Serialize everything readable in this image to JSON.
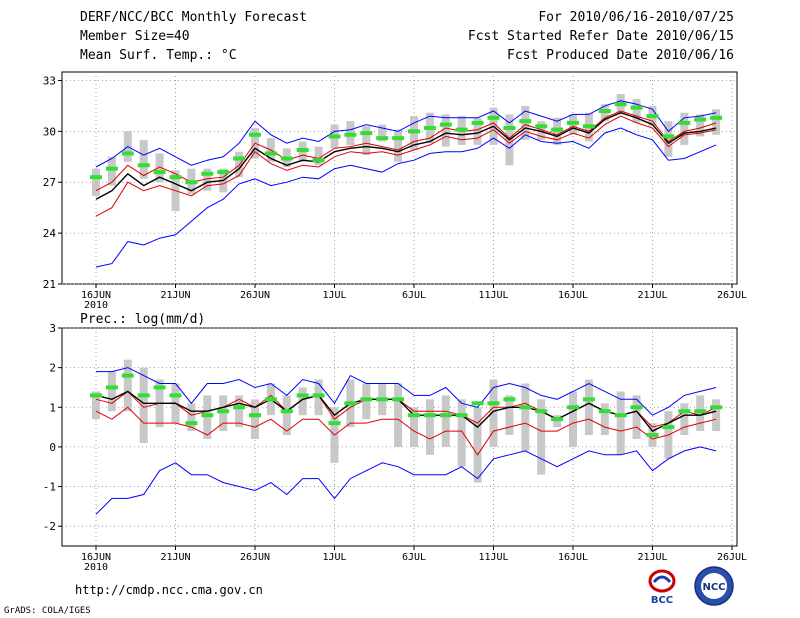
{
  "header": {
    "title": "DERF/NCC/BCC Monthly Forecast",
    "member_size": "Member Size=40",
    "variable": "Mean Surf. Temp.: °C",
    "forecast_period": "For 2010/06/16-2010/07/25",
    "fcst_started": "Fcst Started Refer Date 2010/06/15",
    "fcst_produced": "Fcst Produced Date 2010/06/16"
  },
  "footer": {
    "url": "http://cmdp.ncc.cma.gov.cn",
    "credit": "GrADS: COLA/IGES",
    "logo_bcc": "BCC",
    "logo_ncc": "NCC"
  },
  "colors": {
    "max_line": "#0000ff",
    "min_line": "#0000ff",
    "upper_line": "#dd0000",
    "lower_line": "#dd0000",
    "mean_line": "#000000",
    "obs_marker": "#33dd33",
    "spread_bar": "#c8c8c8",
    "grid": "#888888"
  },
  "chart_data": [
    {
      "type": "line",
      "title": "Mean Surf. Temp.: °C",
      "x_tick_labels": [
        "16JUN",
        "21JUN",
        "26JUN",
        "1JUL",
        "6JUL",
        "11JUL",
        "16JUL",
        "21JUL",
        "26JUL"
      ],
      "x_tick_days": [
        0,
        5,
        10,
        15,
        20,
        25,
        30,
        35,
        40
      ],
      "x_year_label": "2010",
      "y_tick_labels": [
        "21",
        "24",
        "27",
        "30",
        "33"
      ],
      "ylim": [
        21,
        33.5
      ],
      "x_days": [
        0,
        1,
        2,
        3,
        4,
        5,
        6,
        7,
        8,
        9,
        10,
        11,
        12,
        13,
        14,
        15,
        16,
        17,
        18,
        19,
        20,
        21,
        22,
        23,
        24,
        25,
        26,
        27,
        28,
        29,
        30,
        31,
        32,
        33,
        34,
        35,
        36,
        37,
        38,
        39
      ],
      "series": [
        {
          "name": "max",
          "values": [
            27.9,
            28.4,
            29.1,
            28.6,
            29.0,
            28.5,
            28.0,
            28.3,
            28.5,
            29.3,
            30.6,
            29.8,
            29.3,
            29.6,
            29.4,
            30.0,
            30.1,
            30.4,
            30.2,
            30.0,
            30.5,
            30.9,
            30.8,
            30.8,
            30.8,
            31.2,
            30.5,
            31.2,
            30.9,
            30.6,
            31.0,
            31.0,
            31.5,
            31.8,
            31.6,
            31.3,
            30.0,
            30.8,
            30.9,
            31.1
          ]
        },
        {
          "name": "upper",
          "values": [
            26.5,
            27.0,
            28.0,
            27.4,
            27.9,
            27.5,
            27.0,
            27.2,
            27.3,
            28.0,
            29.3,
            28.9,
            28.3,
            28.6,
            28.4,
            29.0,
            29.1,
            29.3,
            29.1,
            28.9,
            29.4,
            29.6,
            30.2,
            30.0,
            30.1,
            30.5,
            29.6,
            30.4,
            30.1,
            29.8,
            30.3,
            30.0,
            30.8,
            31.2,
            30.9,
            30.6,
            29.4,
            30.0,
            30.2,
            30.5
          ]
        },
        {
          "name": "mean",
          "values": [
            26.0,
            26.5,
            27.5,
            26.8,
            27.3,
            26.9,
            26.5,
            27.0,
            27.1,
            27.8,
            29.0,
            28.4,
            28.0,
            28.3,
            28.2,
            28.8,
            29.0,
            29.1,
            29.0,
            28.8,
            29.2,
            29.4,
            29.9,
            29.8,
            29.9,
            30.3,
            29.5,
            30.2,
            30.0,
            29.7,
            30.2,
            29.9,
            30.7,
            31.1,
            30.8,
            30.4,
            29.3,
            29.9,
            30.0,
            30.2
          ]
        },
        {
          "name": "lower",
          "values": [
            25.0,
            25.5,
            27.0,
            26.5,
            26.8,
            26.5,
            26.2,
            26.8,
            26.9,
            27.4,
            28.8,
            28.1,
            27.7,
            28.0,
            27.9,
            28.5,
            28.8,
            28.7,
            28.8,
            28.6,
            28.9,
            29.2,
            29.7,
            29.5,
            29.6,
            30.1,
            29.3,
            30.0,
            29.7,
            29.5,
            29.9,
            29.6,
            30.4,
            30.9,
            30.5,
            30.2,
            29.1,
            29.8,
            29.9,
            30.1
          ]
        },
        {
          "name": "min",
          "values": [
            22.0,
            22.2,
            23.5,
            23.3,
            23.7,
            23.9,
            24.7,
            25.5,
            26.0,
            26.9,
            27.2,
            26.8,
            27.0,
            27.3,
            27.2,
            27.8,
            28.0,
            27.8,
            27.6,
            28.1,
            28.3,
            28.7,
            28.8,
            28.8,
            29.0,
            29.6,
            29.0,
            29.8,
            29.4,
            29.3,
            29.4,
            29.0,
            29.9,
            30.2,
            29.8,
            29.5,
            28.3,
            28.4,
            28.8,
            29.2
          ]
        },
        {
          "name": "observed",
          "values": [
            27.3,
            27.8,
            28.7,
            28.0,
            27.6,
            27.3,
            27.0,
            27.5,
            27.6,
            28.4,
            29.8,
            28.7,
            28.4,
            28.9,
            28.3,
            29.7,
            29.8,
            29.9,
            29.6,
            29.6,
            30.0,
            30.2,
            30.4,
            30.1,
            30.5,
            30.8,
            30.2,
            30.6,
            30.3,
            30.1,
            30.5,
            30.3,
            31.2,
            31.6,
            31.4,
            30.9,
            29.7,
            30.5,
            30.7,
            30.8
          ]
        }
      ],
      "spread_bars": {
        "low": [
          26.2,
          26.8,
          28.2,
          27.2,
          27.0,
          25.3,
          26.3,
          26.5,
          26.4,
          27.3,
          28.4,
          28.2,
          27.9,
          28.2,
          28.0,
          29.0,
          29.2,
          28.6,
          29.4,
          28.2,
          28.9,
          29.3,
          29.1,
          29.2,
          29.2,
          29.2,
          28.0,
          29.5,
          29.5,
          29.2,
          29.8,
          29.4,
          30.6,
          31.0,
          30.5,
          30.3,
          28.5,
          29.2,
          29.7,
          29.8
        ],
        "high": [
          27.8,
          28.5,
          30.0,
          29.5,
          28.7,
          27.7,
          27.8,
          27.8,
          27.8,
          28.8,
          30.2,
          29.6,
          29.0,
          29.4,
          29.1,
          30.4,
          30.6,
          30.3,
          30.4,
          30.1,
          30.9,
          31.1,
          31.0,
          30.9,
          30.8,
          31.4,
          31.0,
          31.5,
          30.6,
          30.8,
          31.0,
          31.1,
          31.6,
          32.2,
          31.9,
          31.5,
          30.6,
          31.1,
          31.0,
          31.3
        ]
      }
    },
    {
      "type": "line",
      "title": "Prec.: log(mm/d)",
      "x_tick_labels": [
        "16JUN",
        "21JUN",
        "26JUN",
        "1JUL",
        "6JUL",
        "11JUL",
        "16JUL",
        "21JUL",
        "26JUL"
      ],
      "x_tick_days": [
        0,
        5,
        10,
        15,
        20,
        25,
        30,
        35,
        40
      ],
      "x_year_label": "2010",
      "y_tick_labels": [
        "-2",
        "-1",
        "0",
        "1",
        "2",
        "3"
      ],
      "ylim": [
        -2.5,
        3
      ],
      "x_days": [
        0,
        1,
        2,
        3,
        4,
        5,
        6,
        7,
        8,
        9,
        10,
        11,
        12,
        13,
        14,
        15,
        16,
        17,
        18,
        19,
        20,
        21,
        22,
        23,
        24,
        25,
        26,
        27,
        28,
        29,
        30,
        31,
        32,
        33,
        34,
        35,
        36,
        37,
        38,
        39
      ],
      "series": [
        {
          "name": "max",
          "values": [
            1.9,
            1.9,
            2.0,
            1.8,
            1.6,
            1.6,
            1.1,
            1.6,
            1.6,
            1.7,
            1.5,
            1.6,
            1.3,
            1.7,
            1.6,
            1.1,
            1.8,
            1.6,
            1.6,
            1.6,
            1.3,
            1.3,
            1.5,
            1.1,
            1.0,
            1.5,
            1.6,
            1.5,
            1.3,
            1.2,
            1.4,
            1.6,
            1.4,
            1.2,
            1.2,
            0.8,
            1.0,
            1.3,
            1.4,
            1.5
          ]
        },
        {
          "name": "upper",
          "values": [
            1.2,
            1.1,
            1.4,
            1.0,
            1.1,
            1.1,
            0.8,
            0.9,
            1.0,
            1.2,
            1.0,
            1.3,
            0.9,
            1.2,
            1.3,
            0.7,
            1.0,
            1.2,
            1.2,
            1.2,
            0.9,
            0.9,
            0.9,
            0.8,
            0.6,
            1.0,
            1.0,
            1.1,
            0.9,
            0.7,
            0.9,
            1.1,
            0.9,
            0.8,
            0.9,
            0.5,
            0.6,
            0.9,
            0.8,
            1.0
          ]
        },
        {
          "name": "mean",
          "values": [
            1.3,
            1.2,
            1.4,
            1.1,
            1.1,
            1.1,
            0.9,
            0.9,
            1.0,
            1.1,
            1.0,
            1.2,
            0.9,
            1.2,
            1.3,
            0.8,
            1.1,
            1.2,
            1.2,
            1.2,
            0.8,
            0.8,
            0.8,
            0.8,
            0.5,
            0.9,
            1.0,
            1.0,
            0.9,
            0.7,
            0.9,
            1.1,
            0.9,
            0.8,
            0.9,
            0.4,
            0.6,
            0.8,
            0.8,
            0.9
          ]
        },
        {
          "name": "lower",
          "values": [
            0.9,
            0.7,
            1.0,
            0.6,
            0.6,
            0.6,
            0.5,
            0.3,
            0.6,
            0.6,
            0.5,
            0.7,
            0.4,
            0.7,
            0.7,
            0.3,
            0.6,
            0.6,
            0.7,
            0.7,
            0.4,
            0.2,
            0.4,
            0.4,
            -0.2,
            0.4,
            0.5,
            0.6,
            0.4,
            0.4,
            0.6,
            0.7,
            0.5,
            0.4,
            0.5,
            0.2,
            0.3,
            0.5,
            0.6,
            0.7
          ]
        },
        {
          "name": "min",
          "values": [
            -1.7,
            -1.3,
            -1.3,
            -1.2,
            -0.6,
            -0.4,
            -0.7,
            -0.7,
            -0.9,
            -1.0,
            -1.1,
            -0.9,
            -1.2,
            -0.8,
            -0.8,
            -1.3,
            -0.8,
            -0.6,
            -0.4,
            -0.5,
            -0.7,
            -0.7,
            -0.7,
            -0.5,
            -0.8,
            -0.3,
            -0.2,
            -0.1,
            -0.3,
            -0.5,
            -0.3,
            -0.1,
            -0.2,
            -0.2,
            -0.1,
            -0.6,
            -0.3,
            -0.1,
            0.0,
            -0.1
          ]
        },
        {
          "name": "observed",
          "values": [
            1.3,
            1.5,
            1.8,
            1.3,
            1.5,
            1.3,
            0.6,
            0.8,
            0.9,
            1.0,
            0.8,
            1.2,
            0.9,
            1.3,
            1.3,
            0.6,
            1.1,
            1.2,
            1.2,
            1.2,
            0.8,
            0.8,
            0.8,
            0.8,
            1.1,
            1.1,
            1.2,
            1.0,
            0.9,
            0.7,
            1.0,
            1.2,
            0.9,
            0.8,
            1.0,
            0.3,
            0.5,
            0.9,
            0.9,
            1.0
          ]
        }
      ],
      "spread_bars": {
        "low": [
          0.7,
          0.9,
          0.9,
          0.1,
          0.5,
          0.6,
          0.4,
          0.2,
          0.4,
          0.5,
          0.2,
          0.8,
          0.3,
          0.8,
          0.8,
          -0.4,
          0.5,
          0.7,
          0.8,
          0.0,
          0.0,
          -0.2,
          0.0,
          -0.5,
          -0.9,
          0.0,
          0.3,
          -0.1,
          -0.7,
          0.5,
          0.0,
          0.3,
          0.3,
          -0.2,
          0.2,
          0.0,
          -0.3,
          0.3,
          0.4,
          0.4
        ],
        "high": [
          1.4,
          1.9,
          2.2,
          2.0,
          1.7,
          1.6,
          1.1,
          1.3,
          1.3,
          1.3,
          1.2,
          1.6,
          1.3,
          1.5,
          1.7,
          1.0,
          1.7,
          1.6,
          1.6,
          1.6,
          1.0,
          1.2,
          1.3,
          1.2,
          1.0,
          1.7,
          1.3,
          1.6,
          1.2,
          0.8,
          1.4,
          1.7,
          1.1,
          1.4,
          1.3,
          0.6,
          0.9,
          1.1,
          1.3,
          1.2
        ]
      }
    }
  ]
}
